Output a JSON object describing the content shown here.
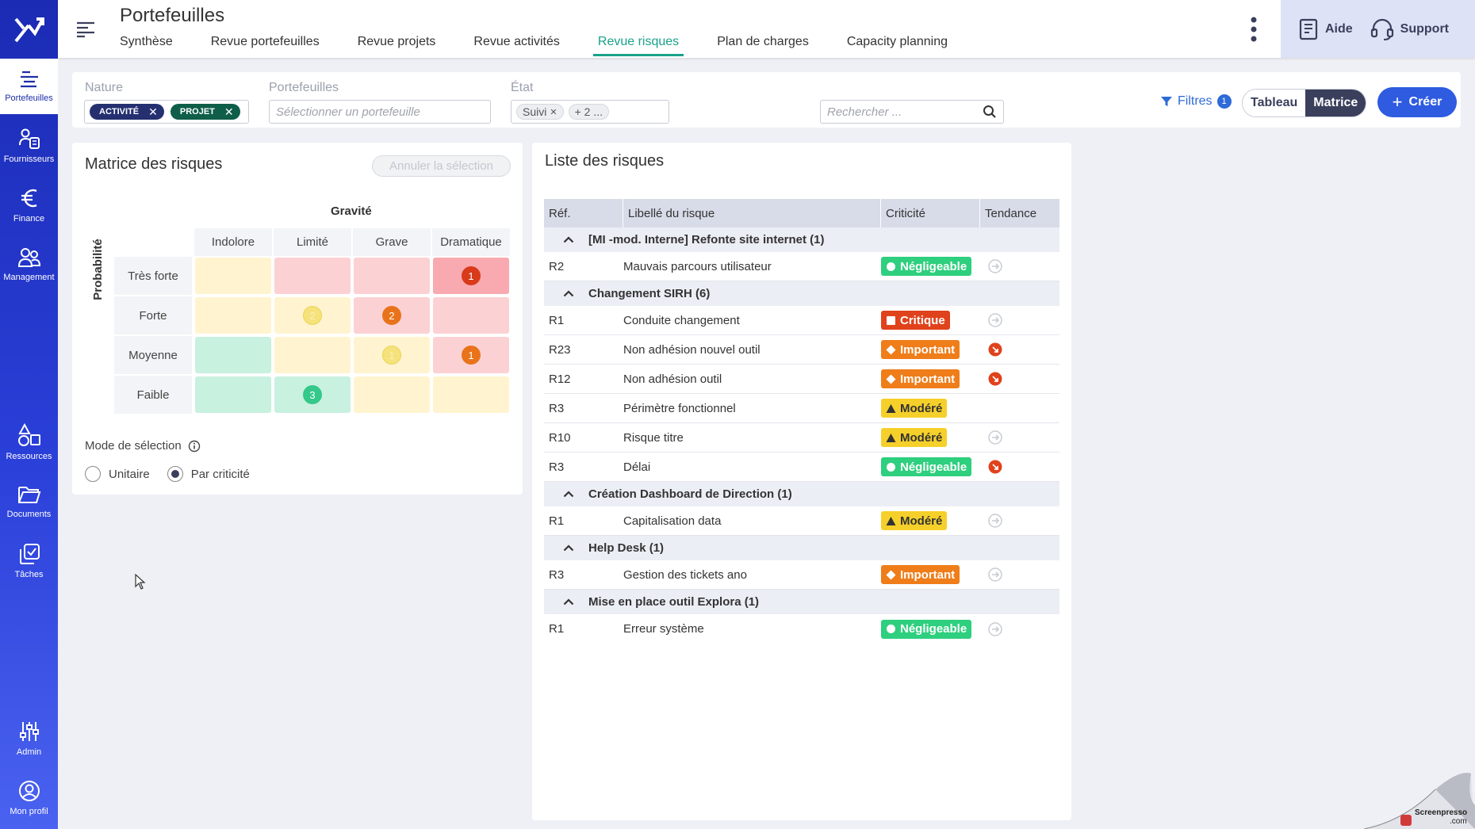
{
  "app": {
    "title": "Portefeuilles"
  },
  "colors": {
    "accent": "#1aa28a",
    "brand": "#2e5be0",
    "sidebar": "#1b2bb4"
  },
  "sidebar": {
    "items": [
      {
        "label": "Portefeuilles",
        "icon": "portfolio-icon"
      },
      {
        "label": "Fournisseurs",
        "icon": "suppliers-icon"
      },
      {
        "label": "Finance",
        "icon": "euro-icon"
      },
      {
        "label": "Management",
        "icon": "team-icon"
      },
      {
        "label": "Ressources",
        "icon": "shapes-icon"
      },
      {
        "label": "Documents",
        "icon": "folder-icon"
      },
      {
        "label": "Tâches",
        "icon": "tasks-icon"
      },
      {
        "label": "Admin",
        "icon": "sliders-icon"
      },
      {
        "label": "Mon profil",
        "icon": "user-circle-icon"
      }
    ]
  },
  "header": {
    "tabs": [
      "Synthèse",
      "Revue portefeuilles",
      "Revue projets",
      "Revue activités",
      "Revue risques",
      "Plan de charges",
      "Capacity planning"
    ],
    "active_tab": "Revue risques",
    "help_label": "Aide",
    "support_label": "Support"
  },
  "filters": {
    "nature_label": "Nature",
    "nature_chips": [
      "ACTIVITÉ",
      "PROJET"
    ],
    "portefeuilles_label": "Portefeuilles",
    "portefeuilles_placeholder": "Sélectionner un portefeuille",
    "etat_label": "État",
    "etat_chips": [
      "Suivi",
      "+ 2 ..."
    ],
    "search_placeholder": "Rechercher ...",
    "filtres_label": "Filtres",
    "filtres_count": "1",
    "view_tableau": "Tableau",
    "view_matrice": "Matrice",
    "active_view": "Matrice",
    "create_label": "Créer"
  },
  "matrix": {
    "title": "Matrice des risques",
    "cancel_label": "Annuler la sélection",
    "gravite_label": "Gravité",
    "probabilite_label": "Probabilité",
    "columns": [
      "Indolore",
      "Limité",
      "Grave",
      "Dramatique"
    ],
    "rows": [
      {
        "label": "Très forte",
        "counts": [
          null,
          null,
          null,
          1
        ]
      },
      {
        "label": "Forte",
        "counts": [
          null,
          2,
          2,
          null
        ]
      },
      {
        "label": "Moyenne",
        "counts": [
          null,
          null,
          1,
          1
        ]
      },
      {
        "label": "Faible",
        "counts": [
          null,
          3,
          null,
          null
        ]
      }
    ],
    "mode_label": "Mode de sélection",
    "mode_options": [
      "Unitaire",
      "Par criticité"
    ],
    "mode_selected": "Par criticité"
  },
  "risk_list": {
    "title": "Liste des risques",
    "columns": [
      "Réf.",
      "Libellé du risque",
      "Criticité",
      "Tendance"
    ],
    "groups": [
      {
        "name": "[MI -mod. Interne] Refonte site internet (1)",
        "rows": [
          {
            "ref": "R2",
            "label": "Mauvais parcours utilisateur",
            "crit": "Négligeable",
            "trend": "stable"
          }
        ]
      },
      {
        "name": "Changement SIRH (6)",
        "rows": [
          {
            "ref": "R1",
            "label": "Conduite changement",
            "crit": "Critique",
            "trend": "stable"
          },
          {
            "ref": "R23",
            "label": "Non adhésion nouvel outil",
            "crit": "Important",
            "trend": "down"
          },
          {
            "ref": "R12",
            "label": "Non adhésion outil",
            "crit": "Important",
            "trend": "down"
          },
          {
            "ref": "R3",
            "label": "Périmètre fonctionnel",
            "crit": "Modéré",
            "trend": "none"
          },
          {
            "ref": "R10",
            "label": "Risque titre",
            "crit": "Modéré",
            "trend": "stable"
          },
          {
            "ref": "R3",
            "label": "Délai",
            "crit": "Négligeable",
            "trend": "down"
          }
        ]
      },
      {
        "name": "Création Dashboard de Direction (1)",
        "rows": [
          {
            "ref": "R1",
            "label": "Capitalisation data",
            "crit": "Modéré",
            "trend": "stable"
          }
        ]
      },
      {
        "name": "Help Desk (1)",
        "rows": [
          {
            "ref": "R3",
            "label": "Gestion des tickets ano",
            "crit": "Important",
            "trend": "stable"
          }
        ]
      },
      {
        "name": "Mise en place outil Explora (1)",
        "rows": [
          {
            "ref": "R1",
            "label": "Erreur système",
            "crit": "Négligeable",
            "trend": "stable"
          }
        ]
      }
    ]
  },
  "watermark": {
    "text": "Screenpresso",
    "sub": ".com"
  }
}
